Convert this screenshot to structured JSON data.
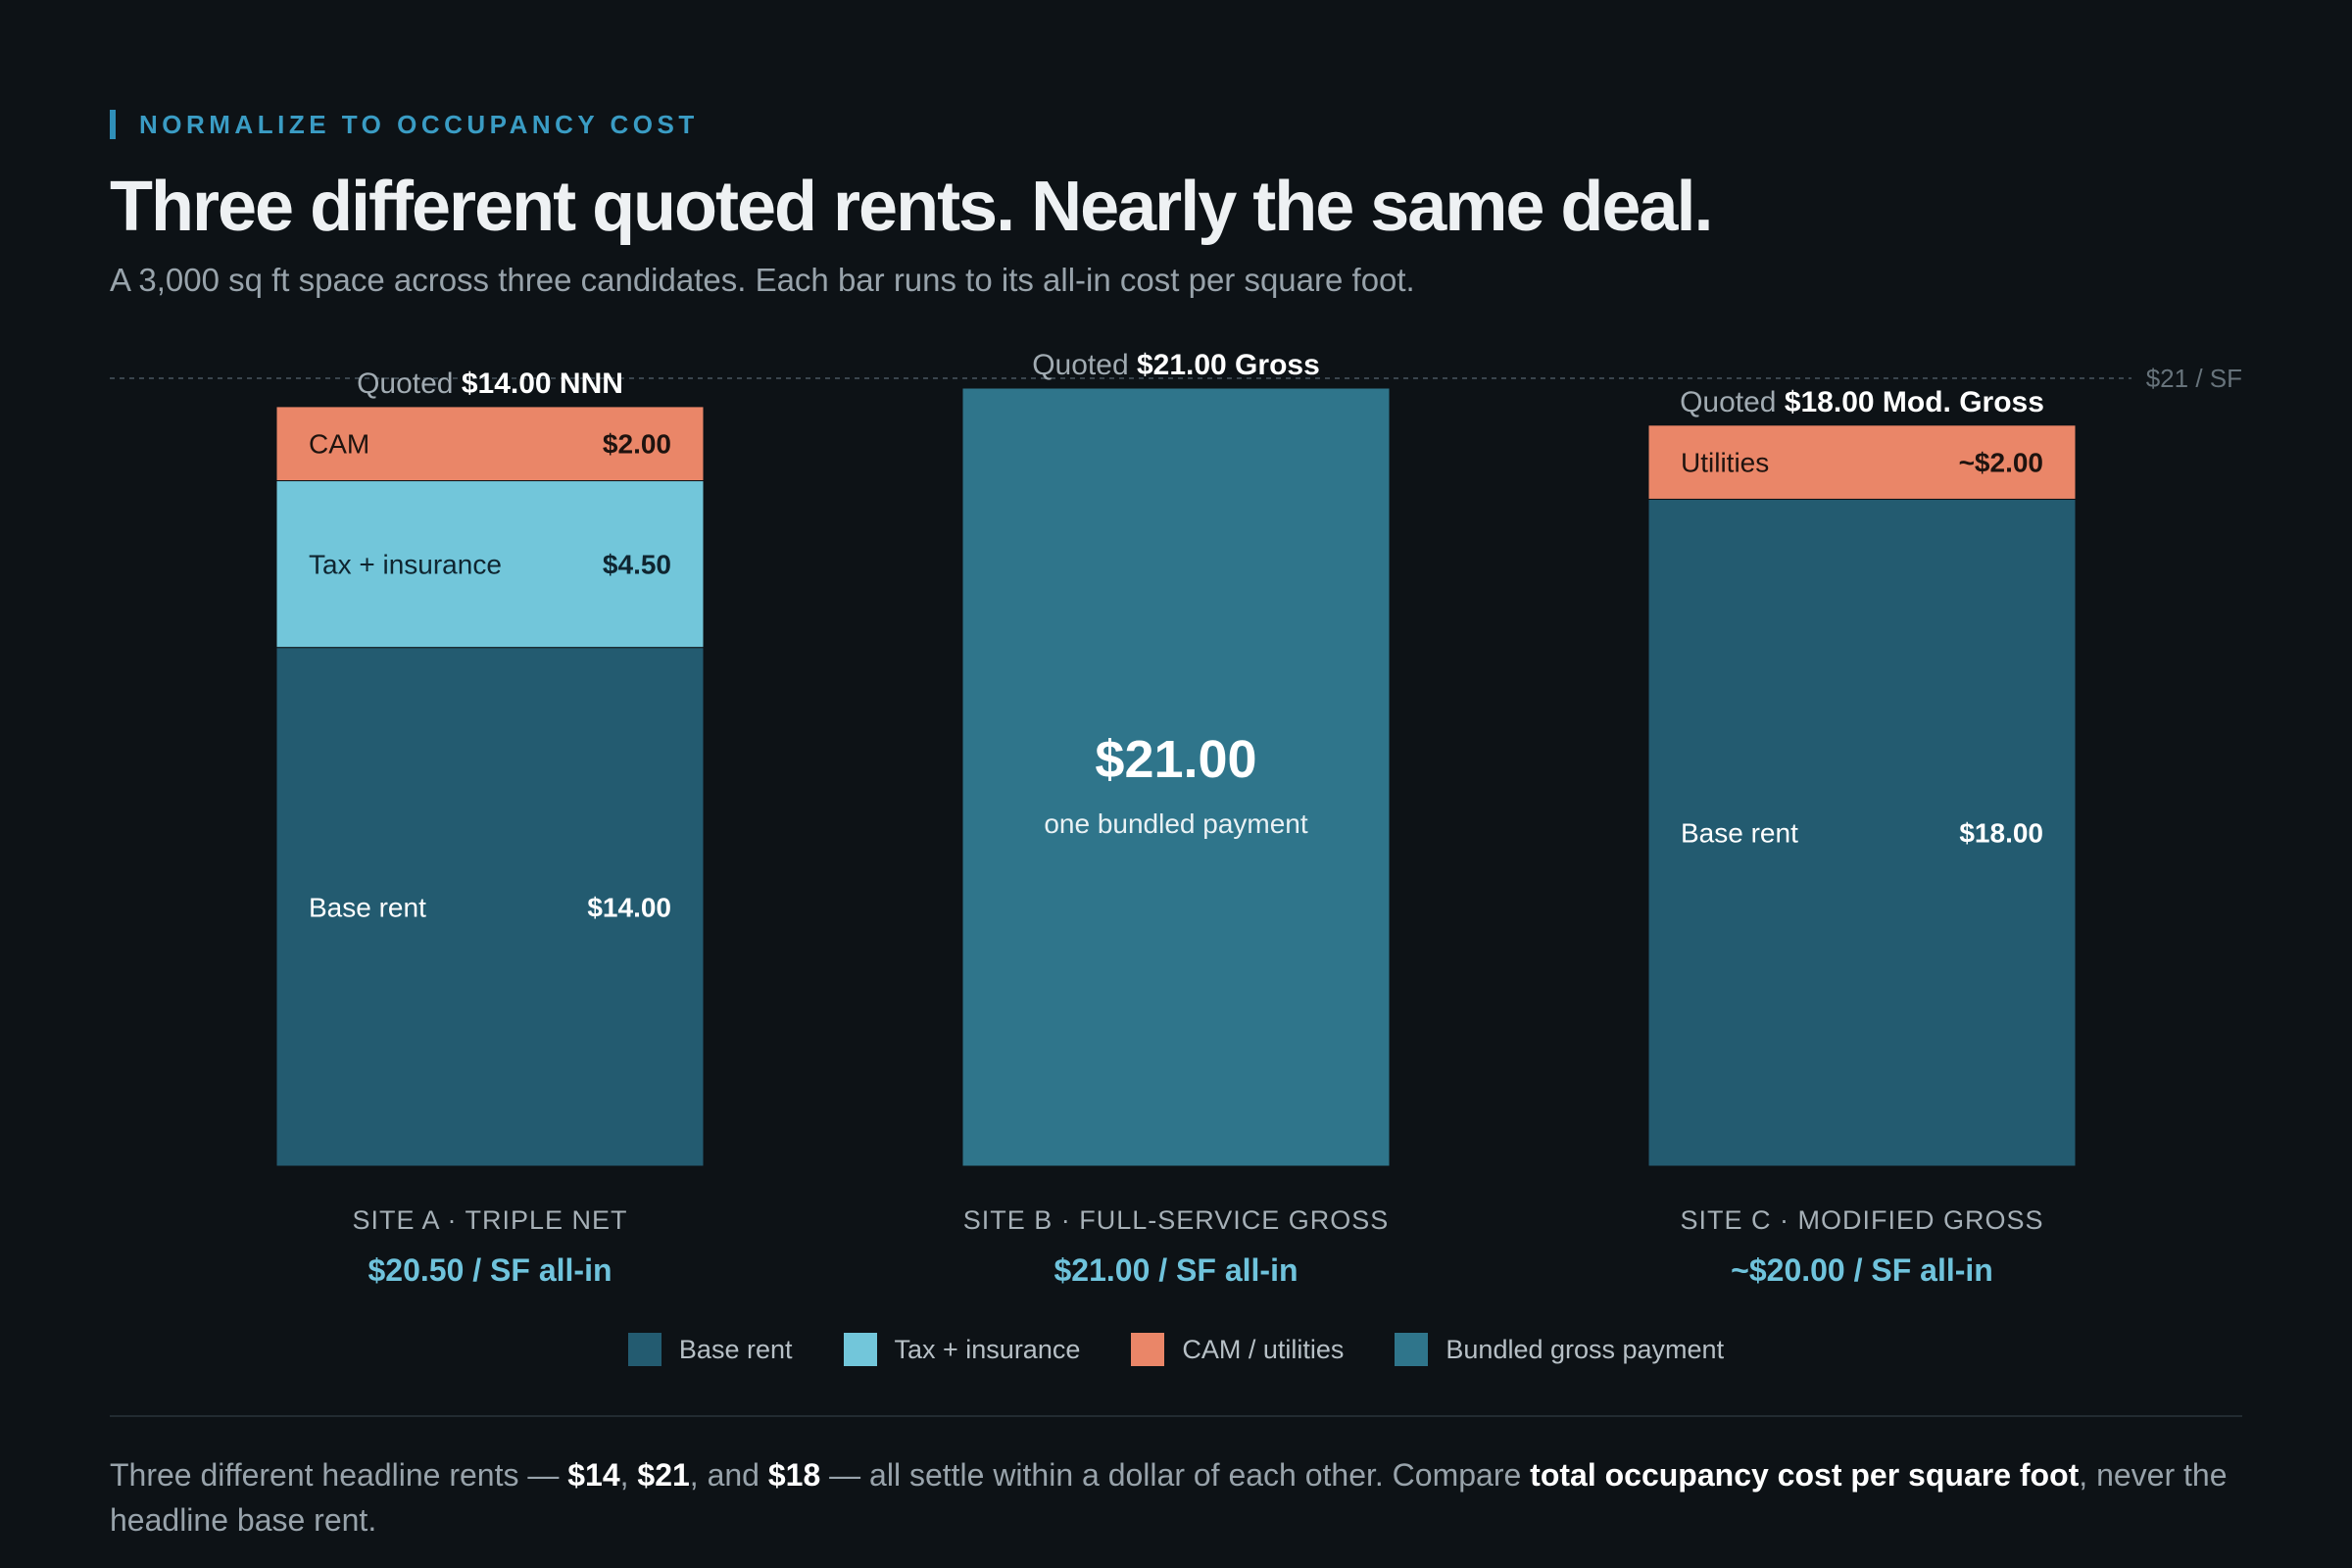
{
  "header": {
    "eyebrow": "NORMALIZE TO OCCUPANCY COST",
    "title": "Three different quoted rents. Nearly the same deal.",
    "subtitle": "A 3,000 sq ft space across three candidates. Each bar runs to its all-in cost per square foot."
  },
  "legend": [
    {
      "label": "Base rent",
      "color": "#235b70"
    },
    {
      "label": "Tax + insurance",
      "color": "#72c6da"
    },
    {
      "label": "CAM / utilities",
      "color": "#ea8668"
    },
    {
      "label": "Bundled gross payment",
      "color": "#2f758b"
    }
  ],
  "note": {
    "p1": "Three different headline rents — ",
    "v1": "$14",
    "p2": ", ",
    "v2": "$21",
    "p3": ", and ",
    "v3": "$18",
    "p4": " — all settle within a dollar of each other. Compare ",
    "emph": "total occupancy cost per square foot",
    "p5": ", never the headline base rent."
  },
  "chart_data": {
    "type": "bar",
    "stacked": true,
    "unit": "$/SF",
    "ylim": [
      0,
      21
    ],
    "reference_line": {
      "value": 21,
      "label": "$21 / SF"
    },
    "categories": [
      "Site A",
      "Site B",
      "Site C"
    ],
    "bars": [
      {
        "quote_prefix": "Quoted",
        "quote_value": "$14.00 NNN",
        "site_label": "SITE A · TRIPLE NET",
        "all_in_label": "$20.50 / SF all-in",
        "total": 20.5,
        "segments": [
          {
            "name": "Base rent",
            "value": 14.0,
            "display": "$14.00",
            "color": "#235b70",
            "text_color": "#ffffff"
          },
          {
            "name": "Tax + insurance",
            "value": 4.5,
            "display": "$4.50",
            "color": "#72c6da",
            "text_color": "#0f2530"
          },
          {
            "name": "CAM",
            "value": 2.0,
            "display": "$2.00",
            "color": "#ea8668",
            "text_color": "#1e130f"
          }
        ]
      },
      {
        "quote_prefix": "Quoted",
        "quote_value": "$21.00 Gross",
        "site_label": "SITE B · FULL-SERVICE GROSS",
        "all_in_label": "$21.00 / SF all-in",
        "total": 21.0,
        "bundled": true,
        "big_value": "$21.00",
        "big_caption": "one bundled payment",
        "segments": [
          {
            "name": "Bundled gross payment",
            "value": 21.0,
            "display": "$21.00",
            "color": "#2f758b",
            "text_color": "#ffffff"
          }
        ]
      },
      {
        "quote_prefix": "Quoted",
        "quote_value": "$18.00 Mod. Gross",
        "site_label": "SITE C · MODIFIED GROSS",
        "all_in_label": "~$20.00 / SF all-in",
        "total": 20.0,
        "segments": [
          {
            "name": "Base rent",
            "value": 18.0,
            "display": "$18.00",
            "color": "#235b70",
            "text_color": "#ffffff"
          },
          {
            "name": "Utilities",
            "value": 2.0,
            "display": "~$2.00",
            "color": "#ea8668",
            "text_color": "#1e130f"
          }
        ]
      }
    ]
  }
}
